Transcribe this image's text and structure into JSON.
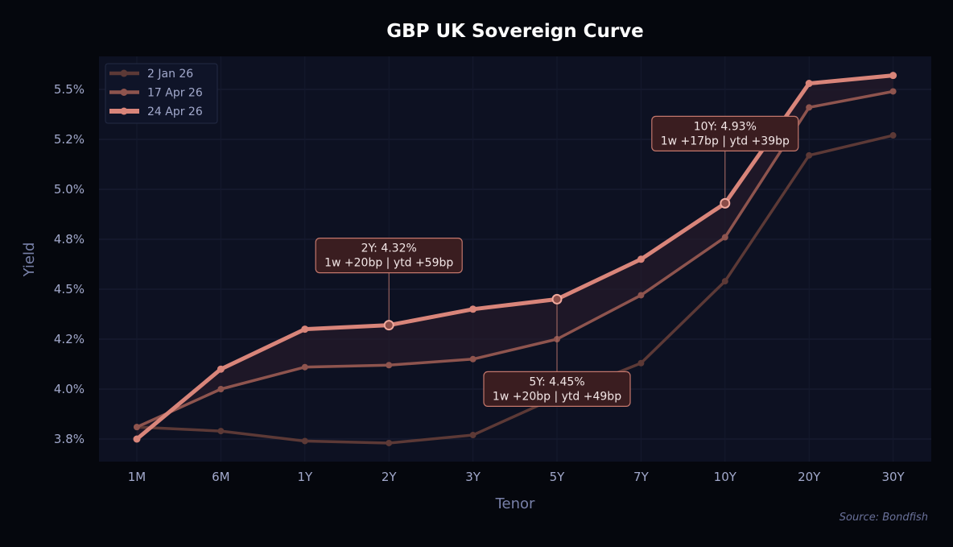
{
  "chart_data": {
    "type": "line",
    "title": "GBP UK Sovereign Curve",
    "xlabel": "Tenor",
    "ylabel": "Yield",
    "source": "Source: Bondfish",
    "categories": [
      "1M",
      "6M",
      "1Y",
      "2Y",
      "3Y",
      "5Y",
      "7Y",
      "10Y",
      "20Y",
      "30Y"
    ],
    "ylim": [
      3.68,
      5.65
    ],
    "yticks": [
      3.75,
      4.0,
      4.25,
      4.5,
      4.75,
      5.0,
      5.25,
      5.5
    ],
    "ytick_labels": [
      "3.8%",
      "4.0%",
      "4.2%",
      "4.5%",
      "4.8%",
      "5.0%",
      "5.2%",
      "5.5%"
    ],
    "grid": true,
    "legend_placement": "top-left",
    "series": [
      {
        "name": "2 Jan 26",
        "color": "#5c3936",
        "values": [
          3.81,
          3.79,
          3.74,
          3.73,
          3.77,
          3.96,
          4.13,
          4.54,
          5.17,
          5.27
        ]
      },
      {
        "name": "17 Apr 26",
        "color": "#8e544e",
        "values": [
          3.81,
          4.0,
          4.11,
          4.12,
          4.15,
          4.25,
          4.47,
          4.76,
          5.41,
          5.49
        ]
      },
      {
        "name": "24 Apr 26",
        "color": "#d9857a",
        "values": [
          3.75,
          4.1,
          4.3,
          4.32,
          4.4,
          4.45,
          4.65,
          4.93,
          5.53,
          5.57
        ]
      }
    ],
    "annotations": [
      {
        "tenor": "2Y",
        "line1": "2Y: 4.32%",
        "line2": "1w +20bp | ytd +59bp",
        "position": "above"
      },
      {
        "tenor": "5Y",
        "line1": "5Y: 4.45%",
        "line2": "1w +20bp | ytd +49bp",
        "position": "below"
      },
      {
        "tenor": "10Y",
        "line1": "10Y: 4.93%",
        "line2": "1w +17bp | ytd +39bp",
        "position": "above"
      }
    ]
  }
}
